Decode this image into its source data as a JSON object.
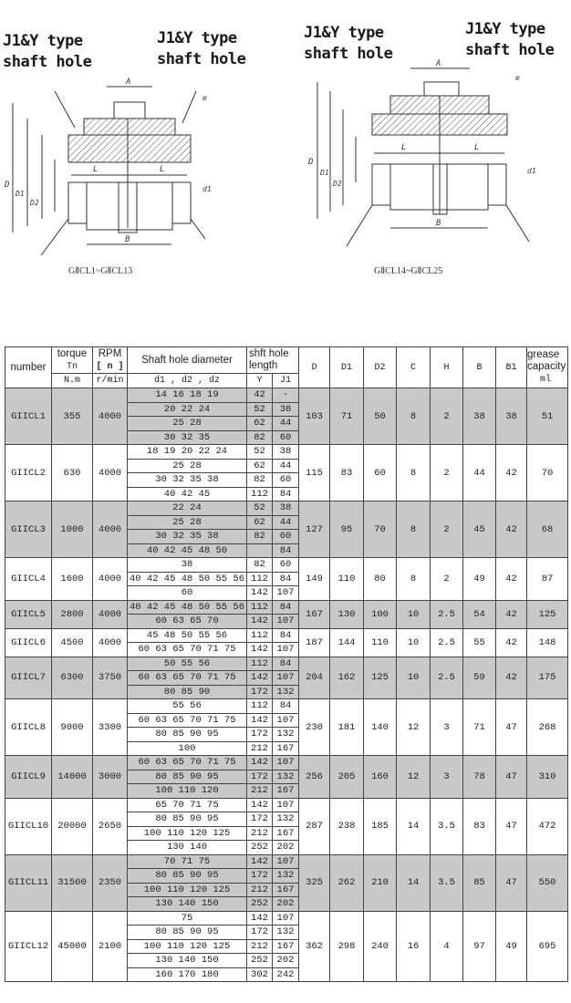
{
  "drawings": {
    "left": {
      "label_left": "J1&Y type\nshaft hole",
      "label_right": "J1&Y type\nshaft hole",
      "caption": "GⅡCL1~GⅡCL13"
    },
    "right": {
      "label_left": "J1&Y type\nshaft hole",
      "label_right": "J1&Y type\nshaft hole",
      "caption": "GⅡCL14~GⅡCL25"
    },
    "dim_letters": {
      "A": "A",
      "L": "L",
      "B": "B",
      "D": "D",
      "D1": "D1",
      "D2": "D2",
      "d1": "d1",
      "e": "e"
    }
  },
  "table": {
    "headers": {
      "number": "number",
      "torque": "torque",
      "torque_sym": "Tn",
      "torque_unit": "N.m",
      "rpm": "RPM",
      "rpm_sym": "[ n ]",
      "rpm_unit": "r/min",
      "shaft_dia": "Shaft hole diameter",
      "shaft_dia_sub": "d1 , d2 , dz",
      "length": "shft hole length",
      "length_y": "Y",
      "length_j1": "J1",
      "D": "D",
      "D1": "D1",
      "D2": "D2",
      "C": "C",
      "H": "H",
      "B": "B",
      "B1": "B1",
      "grease": "grease capacity",
      "grease_unit": "ml"
    },
    "rows": [
      {
        "number": "GIICL1",
        "torque": "355",
        "rpm": "4000",
        "sub": [
          [
            "14 16 18 19",
            "42",
            "-"
          ],
          [
            "20 22 24",
            "52",
            "38"
          ],
          [
            "25 28",
            "62",
            "44"
          ],
          [
            "30 32 35",
            "82",
            "60"
          ]
        ],
        "D": "103",
        "D1": "71",
        "D2": "50",
        "C": "8",
        "H": "2",
        "B": "38",
        "B1": "38",
        "grease": "51"
      },
      {
        "number": "GIICL2",
        "torque": "630",
        "rpm": "4000",
        "sub": [
          [
            "18 19 20 22 24",
            "52",
            "38"
          ],
          [
            "25 28",
            "62",
            "44"
          ],
          [
            "30 32 35 38",
            "82",
            "60"
          ],
          [
            "40 42 45",
            "112",
            "84"
          ]
        ],
        "D": "115",
        "D1": "83",
        "D2": "60",
        "C": "8",
        "H": "2",
        "B": "44",
        "B1": "42",
        "grease": "70"
      },
      {
        "number": "GIICL3",
        "torque": "1000",
        "rpm": "4000",
        "sub": [
          [
            "22 24",
            "52",
            "38"
          ],
          [
            "25 28",
            "62",
            "44"
          ],
          [
            "30 32 35 38",
            "82",
            "60"
          ],
          [
            "40 42 45 48 50",
            "",
            "84"
          ]
        ],
        "D": "127",
        "D1": "95",
        "D2": "70",
        "C": "8",
        "H": "2",
        "B": "45",
        "B1": "42",
        "grease": "68"
      },
      {
        "number": "GIICL4",
        "torque": "1600",
        "rpm": "4000",
        "sub": [
          [
            "38",
            "82",
            "60"
          ],
          [
            "40 42 45 48 50 55 56",
            "112",
            "84"
          ],
          [
            "60",
            "142",
            "107"
          ]
        ],
        "D": "149",
        "D1": "110",
        "D2": "80",
        "C": "8",
        "H": "2",
        "B": "49",
        "B1": "42",
        "grease": "87"
      },
      {
        "number": "GIICL5",
        "torque": "2800",
        "rpm": "4000",
        "sub": [
          [
            "40 42 45 48 50 55 56",
            "112",
            "84"
          ],
          [
            "60 63 65 70",
            "142",
            "107"
          ]
        ],
        "D": "167",
        "D1": "130",
        "D2": "100",
        "C": "10",
        "H": "2.5",
        "B": "54",
        "B1": "42",
        "grease": "125"
      },
      {
        "number": "GIICL6",
        "torque": "4500",
        "rpm": "4000",
        "sub": [
          [
            "45 48 50 55 56",
            "112",
            "84"
          ],
          [
            "60 63 65 70 71 75",
            "142",
            "107"
          ]
        ],
        "D": "187",
        "D1": "144",
        "D2": "110",
        "C": "10",
        "H": "2.5",
        "B": "55",
        "B1": "42",
        "grease": "148"
      },
      {
        "number": "GIICL7",
        "torque": "6300",
        "rpm": "3750",
        "sub": [
          [
            "50 55 56",
            "112",
            "84"
          ],
          [
            "60 63 65 70 71 75",
            "142",
            "107"
          ],
          [
            "80 85 90",
            "172",
            "132"
          ]
        ],
        "D": "204",
        "D1": "162",
        "D2": "125",
        "C": "10",
        "H": "2.5",
        "B": "59",
        "B1": "42",
        "grease": "175"
      },
      {
        "number": "GIICL8",
        "torque": "9000",
        "rpm": "3300",
        "sub": [
          [
            "55 56",
            "112",
            "84"
          ],
          [
            "60 63 65 70 71 75",
            "142",
            "107"
          ],
          [
            "80 85 90 95",
            "172",
            "132"
          ],
          [
            "100",
            "212",
            "167"
          ]
        ],
        "D": "230",
        "D1": "181",
        "D2": "140",
        "C": "12",
        "H": "3",
        "B": "71",
        "B1": "47",
        "grease": "268"
      },
      {
        "number": "GIICL9",
        "torque": "14000",
        "rpm": "3000",
        "sub": [
          [
            "60 63 65 70 71 75",
            "142",
            "107"
          ],
          [
            "80 85 90 95",
            "172",
            "132"
          ],
          [
            "100 110 120",
            "212",
            "167"
          ]
        ],
        "D": "256",
        "D1": "205",
        "D2": "160",
        "C": "12",
        "H": "3",
        "B": "78",
        "B1": "47",
        "grease": "310"
      },
      {
        "number": "GIICL10",
        "torque": "20000",
        "rpm": "2650",
        "sub": [
          [
            "65 70 71 75",
            "142",
            "107"
          ],
          [
            "80 85 90 95",
            "172",
            "132"
          ],
          [
            "100 110 120 125",
            "212",
            "167"
          ],
          [
            "130 140",
            "252",
            "202"
          ]
        ],
        "D": "287",
        "D1": "238",
        "D2": "185",
        "C": "14",
        "H": "3.5",
        "B": "83",
        "B1": "47",
        "grease": "472"
      },
      {
        "number": "GIICL11",
        "torque": "31500",
        "rpm": "2350",
        "sub": [
          [
            "70 71 75",
            "142",
            "107"
          ],
          [
            "80 85 90 95",
            "172",
            "132"
          ],
          [
            "100 110 120 125",
            "212",
            "167"
          ],
          [
            "130 140 150",
            "252",
            "202"
          ]
        ],
        "D": "325",
        "D1": "262",
        "D2": "210",
        "C": "14",
        "H": "3.5",
        "B": "85",
        "B1": "47",
        "grease": "550"
      },
      {
        "number": "GIICL12",
        "torque": "45000",
        "rpm": "2100",
        "sub": [
          [
            "75",
            "142",
            "107"
          ],
          [
            "80 85 90 95",
            "172",
            "132"
          ],
          [
            "100 110 120 125",
            "212",
            "167"
          ],
          [
            "130 140 150",
            "252",
            "202"
          ],
          [
            "160 170 180",
            "302",
            "242"
          ]
        ],
        "D": "362",
        "D1": "298",
        "D2": "240",
        "C": "16",
        "H": "4",
        "B": "97",
        "B1": "49",
        "grease": "695"
      }
    ],
    "shade_color": "#c9c9c9"
  }
}
